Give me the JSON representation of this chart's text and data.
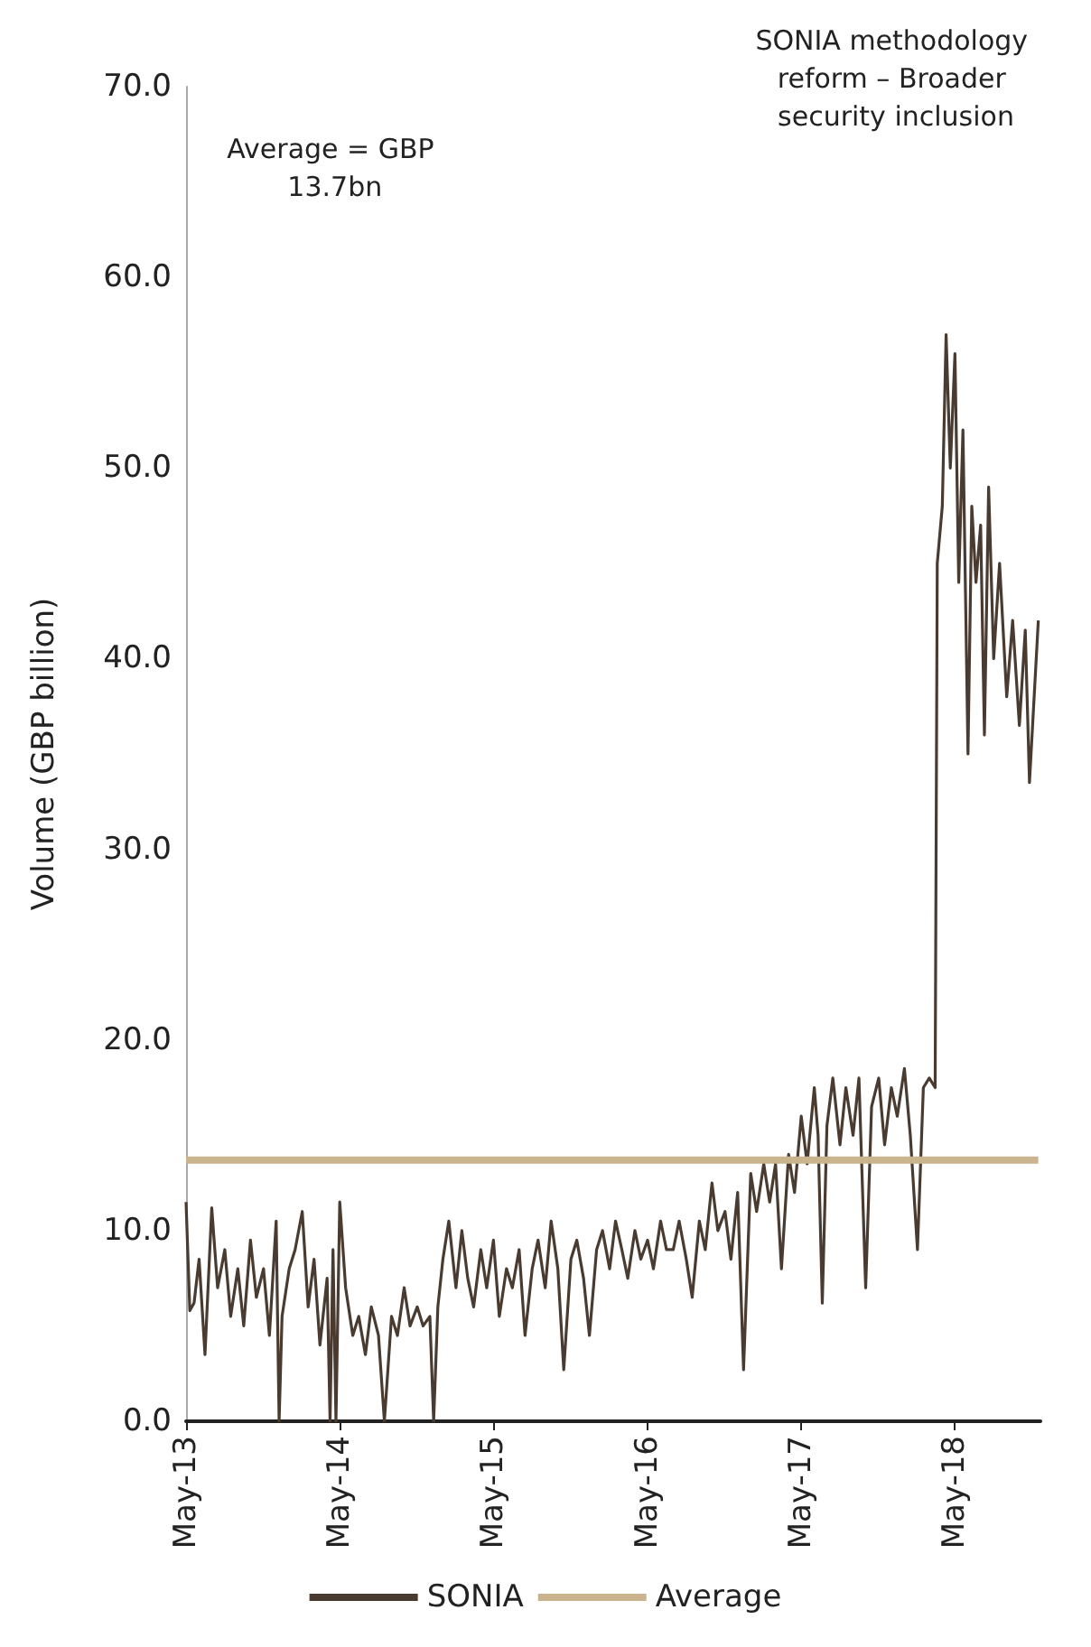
{
  "chart_data": {
    "type": "line",
    "ylabel": "Volume (GBP billion)",
    "annotations": [
      "Average = GBP 13.7bn",
      "SONIA methodology reform – Broader security inclusion"
    ],
    "xlim": [
      "2013-05-01",
      "2018-11-20"
    ],
    "xticks": [
      {
        "value": "2013-05-01",
        "label": "May-13"
      },
      {
        "value": "2014-05-01",
        "label": "May-14"
      },
      {
        "value": "2015-05-01",
        "label": "May-15"
      },
      {
        "value": "2016-05-01",
        "label": "May-16"
      },
      {
        "value": "2017-05-01",
        "label": "May-17"
      },
      {
        "value": "2018-05-01",
        "label": "May-18"
      }
    ],
    "ylim": [
      0,
      70
    ],
    "yticks": [
      {
        "value": 0,
        "label": "0.0"
      },
      {
        "value": 10,
        "label": "10.0"
      },
      {
        "value": 20,
        "label": "20.0"
      },
      {
        "value": 30,
        "label": "30.0"
      },
      {
        "value": 40,
        "label": "40.0"
      },
      {
        "value": 50,
        "label": "50.0"
      },
      {
        "value": 60,
        "label": "60.0"
      },
      {
        "value": 70,
        "label": "70.0"
      }
    ],
    "grid": false,
    "legend": "bottom",
    "marker": "none",
    "series": [
      {
        "name": "SONIA",
        "color": "#4a3b30",
        "x": [
          "2013-05-01",
          "2013-05-10",
          "2013-05-20",
          "2013-06-01",
          "2013-06-15",
          "2013-07-01",
          "2013-07-15",
          "2013-08-01",
          "2013-08-15",
          "2013-09-01",
          "2013-09-15",
          "2013-10-01",
          "2013-10-15",
          "2013-11-01",
          "2013-11-15",
          "2013-12-01",
          "2013-12-08",
          "2013-12-15",
          "2014-01-01",
          "2014-01-15",
          "2014-02-01",
          "2014-02-15",
          "2014-03-01",
          "2014-03-15",
          "2014-04-01",
          "2014-04-08",
          "2014-04-15",
          "2014-04-22",
          "2014-05-01",
          "2014-05-15",
          "2014-06-01",
          "2014-06-15",
          "2014-07-01",
          "2014-07-15",
          "2014-08-01",
          "2014-08-15",
          "2014-09-01",
          "2014-09-15",
          "2014-10-01",
          "2014-10-15",
          "2014-11-01",
          "2014-11-15",
          "2014-12-01",
          "2014-12-10",
          "2014-12-20",
          "2015-01-01",
          "2015-01-15",
          "2015-02-01",
          "2015-02-15",
          "2015-03-01",
          "2015-03-15",
          "2015-04-01",
          "2015-04-15",
          "2015-05-01",
          "2015-05-15",
          "2015-06-01",
          "2015-06-15",
          "2015-07-01",
          "2015-07-15",
          "2015-08-01",
          "2015-08-15",
          "2015-09-01",
          "2015-09-15",
          "2015-10-01",
          "2015-10-15",
          "2015-11-01",
          "2015-11-15",
          "2015-12-01",
          "2015-12-15",
          "2016-01-01",
          "2016-01-15",
          "2016-02-01",
          "2016-02-15",
          "2016-03-01",
          "2016-03-15",
          "2016-04-01",
          "2016-04-15",
          "2016-05-01",
          "2016-05-15",
          "2016-06-01",
          "2016-06-15",
          "2016-07-01",
          "2016-07-15",
          "2016-08-01",
          "2016-08-15",
          "2016-09-01",
          "2016-09-15",
          "2016-10-01",
          "2016-10-15",
          "2016-11-01",
          "2016-11-15",
          "2016-12-01",
          "2016-12-15",
          "2017-01-01",
          "2017-01-15",
          "2017-02-01",
          "2017-02-15",
          "2017-03-01",
          "2017-03-15",
          "2017-04-01",
          "2017-04-15",
          "2017-05-01",
          "2017-05-15",
          "2017-06-01",
          "2017-06-10",
          "2017-06-20",
          "2017-07-01",
          "2017-07-15",
          "2017-08-01",
          "2017-08-15",
          "2017-09-01",
          "2017-09-15",
          "2017-10-01",
          "2017-10-15",
          "2017-11-01",
          "2017-11-15",
          "2017-12-01",
          "2017-12-15",
          "2018-01-01",
          "2018-01-15",
          "2018-02-01",
          "2018-02-15",
          "2018-03-01",
          "2018-03-15",
          "2018-03-20",
          "2018-04-01",
          "2018-04-10",
          "2018-04-20",
          "2018-05-01",
          "2018-05-10",
          "2018-05-20",
          "2018-06-01",
          "2018-06-10",
          "2018-06-20",
          "2018-07-01",
          "2018-07-10",
          "2018-07-20",
          "2018-08-01",
          "2018-08-15",
          "2018-09-01",
          "2018-09-15",
          "2018-10-01",
          "2018-10-15",
          "2018-10-25",
          "2018-11-15"
        ],
        "values": [
          11.5,
          5.8,
          6.2,
          8.5,
          3.5,
          11.2,
          7.0,
          9.0,
          5.5,
          8.0,
          5.0,
          9.5,
          6.5,
          8.0,
          4.5,
          10.5,
          0.0,
          5.5,
          8.0,
          9.0,
          11.0,
          6.0,
          8.5,
          4.0,
          7.5,
          0.0,
          9.0,
          0.0,
          11.5,
          7.0,
          4.5,
          5.5,
          3.5,
          6.0,
          4.5,
          0.0,
          5.5,
          4.5,
          7.0,
          5.0,
          6.0,
          5.0,
          5.5,
          0.0,
          6.0,
          8.5,
          10.5,
          7.0,
          10.0,
          7.5,
          6.0,
          9.0,
          7.0,
          9.5,
          5.5,
          8.0,
          7.0,
          9.0,
          4.5,
          8.0,
          9.5,
          7.0,
          10.5,
          8.0,
          2.7,
          8.5,
          9.5,
          7.5,
          4.5,
          9.0,
          10.0,
          8.0,
          10.5,
          9.0,
          7.5,
          10.0,
          8.5,
          9.5,
          8.0,
          10.5,
          9.0,
          9.0,
          10.5,
          8.5,
          6.5,
          10.5,
          9.0,
          12.5,
          10.0,
          11.0,
          8.5,
          12.0,
          2.7,
          13.0,
          11.0,
          13.5,
          11.5,
          13.5,
          8.0,
          14.0,
          12.0,
          16.0,
          13.5,
          17.5,
          15.0,
          6.2,
          15.5,
          18.0,
          14.5,
          17.5,
          15.0,
          18.0,
          7.0,
          16.5,
          18.0,
          14.5,
          17.5,
          16.0,
          18.5,
          15.0,
          9.0,
          17.5,
          18.0,
          17.5,
          45.0,
          48.0,
          57.0,
          50.0,
          56.0,
          44.0,
          52.0,
          35.0,
          48.0,
          44.0,
          47.0,
          36.0,
          49.0,
          40.0,
          45.0,
          38.0,
          42.0,
          36.5,
          41.5,
          33.5,
          42.0
        ]
      },
      {
        "name": "Average",
        "color": "#c9b48e",
        "x": [
          "2013-05-01",
          "2018-11-15"
        ],
        "values": [
          13.7,
          13.7
        ]
      }
    ]
  }
}
